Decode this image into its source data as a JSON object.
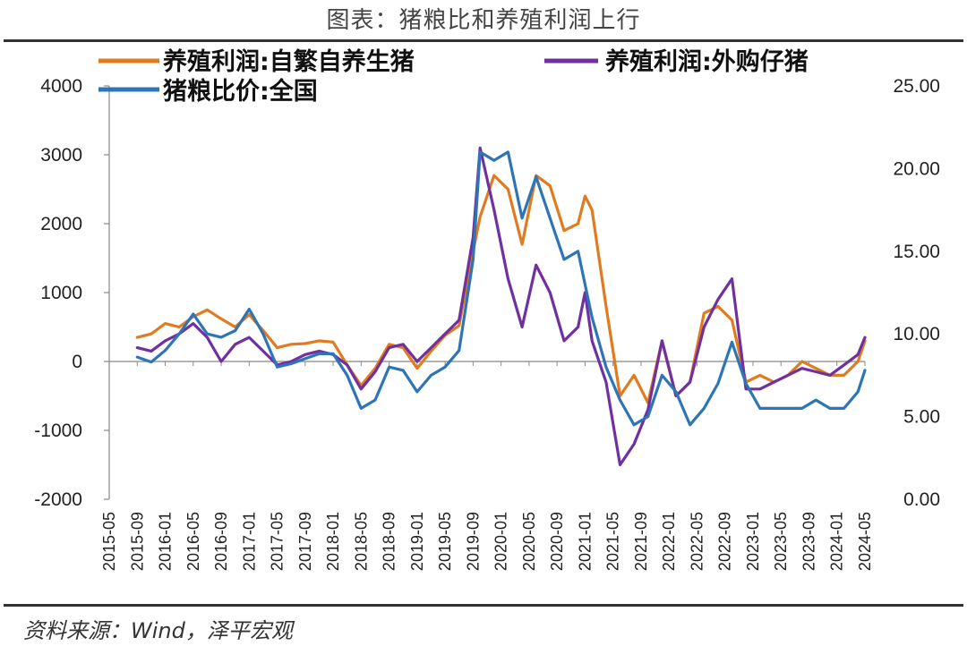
{
  "title": "图表：猪粮比和养殖利润上行",
  "source": "资料来源：Wind，泽平宏观",
  "chart_data": {
    "type": "line",
    "title": "图表：猪粮比和养殖利润上行",
    "x_ticks": [
      "2015-05",
      "2015-09",
      "2016-01",
      "2016-05",
      "2016-09",
      "2017-01",
      "2017-05",
      "2017-09",
      "2018-01",
      "2018-05",
      "2018-09",
      "2019-01",
      "2019-05",
      "2019-09",
      "2020-01",
      "2020-05",
      "2020-09",
      "2021-01",
      "2021-05",
      "2021-09",
      "2022-01",
      "2022-05",
      "2022-09",
      "2023-01",
      "2023-05",
      "2023-09",
      "2024-01",
      "2024-05"
    ],
    "left_axis": {
      "min": -2000,
      "max": 4000,
      "ticks": [
        "4000",
        "3000",
        "2000",
        "1000",
        "0",
        "-1000",
        "-2000"
      ]
    },
    "right_axis": {
      "min": 0,
      "max": 25,
      "ticks": [
        "25.00",
        "20.00",
        "15.00",
        "10.00",
        "5.00",
        "0.00"
      ]
    },
    "series": [
      {
        "name": "养殖利润:自繁自养生猪",
        "axis": "left",
        "color": "#E07B1F",
        "x": [
          "2015-09",
          "2015-11",
          "2016-01",
          "2016-03",
          "2016-05",
          "2016-07",
          "2016-09",
          "2016-11",
          "2017-01",
          "2017-03",
          "2017-05",
          "2017-07",
          "2017-09",
          "2017-11",
          "2018-01",
          "2018-03",
          "2018-05",
          "2018-07",
          "2018-09",
          "2018-11",
          "2019-01",
          "2019-03",
          "2019-05",
          "2019-07",
          "2019-09",
          "2019-10",
          "2019-12",
          "2020-02",
          "2020-04",
          "2020-06",
          "2020-08",
          "2020-10",
          "2020-12",
          "2021-01",
          "2021-02",
          "2021-04",
          "2021-06",
          "2021-08",
          "2021-10",
          "2021-12",
          "2022-02",
          "2022-04",
          "2022-06",
          "2022-08",
          "2022-10",
          "2022-12",
          "2023-02",
          "2023-04",
          "2023-06",
          "2023-08",
          "2023-10",
          "2023-12",
          "2024-02",
          "2024-04",
          "2024-05"
        ],
        "y": [
          350,
          400,
          550,
          500,
          650,
          750,
          620,
          500,
          680,
          450,
          200,
          250,
          260,
          300,
          280,
          -50,
          -350,
          -100,
          250,
          200,
          -100,
          150,
          380,
          520,
          1600,
          2100,
          2700,
          2500,
          1700,
          2700,
          2550,
          1900,
          2000,
          2400,
          2200,
          800,
          -500,
          -200,
          -600,
          300,
          -500,
          -300,
          700,
          800,
          600,
          -300,
          -200,
          -300,
          -200,
          0,
          -100,
          -200,
          -200,
          0,
          300
        ]
      },
      {
        "name": "养殖利润:外购仔猪",
        "axis": "left",
        "color": "#7030A0",
        "x": [
          "2015-09",
          "2015-11",
          "2016-01",
          "2016-03",
          "2016-05",
          "2016-07",
          "2016-09",
          "2016-11",
          "2017-01",
          "2017-03",
          "2017-05",
          "2017-07",
          "2017-09",
          "2017-11",
          "2018-01",
          "2018-03",
          "2018-05",
          "2018-07",
          "2018-09",
          "2018-11",
          "2019-01",
          "2019-03",
          "2019-05",
          "2019-07",
          "2019-09",
          "2019-10",
          "2019-12",
          "2020-02",
          "2020-04",
          "2020-06",
          "2020-08",
          "2020-10",
          "2020-12",
          "2021-01",
          "2021-02",
          "2021-04",
          "2021-06",
          "2021-08",
          "2021-10",
          "2021-12",
          "2022-02",
          "2022-04",
          "2022-06",
          "2022-08",
          "2022-10",
          "2022-12",
          "2023-02",
          "2023-04",
          "2023-06",
          "2023-08",
          "2023-10",
          "2023-12",
          "2024-02",
          "2024-04",
          "2024-05"
        ],
        "y": [
          200,
          150,
          300,
          400,
          550,
          350,
          0,
          250,
          350,
          150,
          -50,
          0,
          100,
          150,
          100,
          -50,
          -400,
          -150,
          200,
          250,
          0,
          200,
          400,
          600,
          1800,
          3100,
          2200,
          1200,
          500,
          1400,
          1000,
          300,
          500,
          1000,
          300,
          -300,
          -1500,
          -1200,
          -700,
          300,
          -500,
          -300,
          500,
          900,
          1200,
          -400,
          -400,
          -300,
          -200,
          -100,
          -150,
          -200,
          -50,
          100,
          350
        ]
      },
      {
        "name": "猪粮比价:全国",
        "axis": "right",
        "color": "#2E75B6",
        "x": [
          "2015-09",
          "2015-11",
          "2016-01",
          "2016-03",
          "2016-05",
          "2016-07",
          "2016-09",
          "2016-11",
          "2017-01",
          "2017-03",
          "2017-05",
          "2017-07",
          "2017-09",
          "2017-11",
          "2018-01",
          "2018-03",
          "2018-05",
          "2018-07",
          "2018-09",
          "2018-11",
          "2019-01",
          "2019-03",
          "2019-05",
          "2019-07",
          "2019-09",
          "2019-10",
          "2019-12",
          "2020-02",
          "2020-04",
          "2020-06",
          "2020-08",
          "2020-10",
          "2020-12",
          "2021-01",
          "2021-02",
          "2021-04",
          "2021-06",
          "2021-08",
          "2021-10",
          "2021-12",
          "2022-02",
          "2022-04",
          "2022-06",
          "2022-08",
          "2022-10",
          "2022-12",
          "2023-02",
          "2023-04",
          "2023-06",
          "2023-08",
          "2023-10",
          "2023-12",
          "2024-02",
          "2024-04",
          "2024-05"
        ],
        "y": [
          8.6,
          8.3,
          9.0,
          10.0,
          11.2,
          10.0,
          9.8,
          10.2,
          11.5,
          10.0,
          8.0,
          8.2,
          8.5,
          8.8,
          8.8,
          7.5,
          5.5,
          6.0,
          8.0,
          7.8,
          6.5,
          7.5,
          8.0,
          9.0,
          14.5,
          21.0,
          20.5,
          21.0,
          17.0,
          19.5,
          17.0,
          14.5,
          15.0,
          13.0,
          11.0,
          8.0,
          6.0,
          4.5,
          5.0,
          7.5,
          6.5,
          4.5,
          5.5,
          7.0,
          9.5,
          7.0,
          5.5,
          5.5,
          5.5,
          5.5,
          6.0,
          5.5,
          5.5,
          6.5,
          7.8
        ]
      }
    ]
  }
}
